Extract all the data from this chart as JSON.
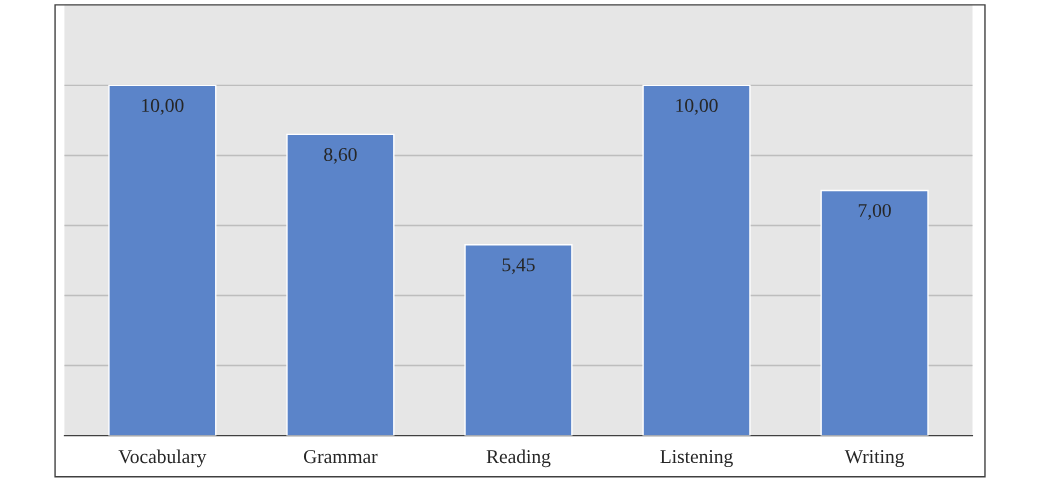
{
  "chart_data": {
    "type": "bar",
    "categories": [
      "Vocabulary",
      "Grammar",
      "Reading",
      "Listening",
      "Writing"
    ],
    "values": [
      10,
      8.6,
      5.45,
      10,
      7
    ],
    "value_labels": [
      "10,00",
      "8,60",
      "5,45",
      "10,00",
      "7,00"
    ],
    "color": "#5b84c9",
    "ylim": [
      0,
      12.3
    ],
    "yticks": [
      {
        "value": 0,
        "label": null
      },
      {
        "value": 2,
        "label": null
      },
      {
        "value": 4,
        "label": null
      },
      {
        "value": 6,
        "label": null
      },
      {
        "value": 8,
        "label": null
      },
      {
        "value": 10,
        "label": null
      }
    ],
    "grid": "y",
    "tick_labels": "x"
  }
}
